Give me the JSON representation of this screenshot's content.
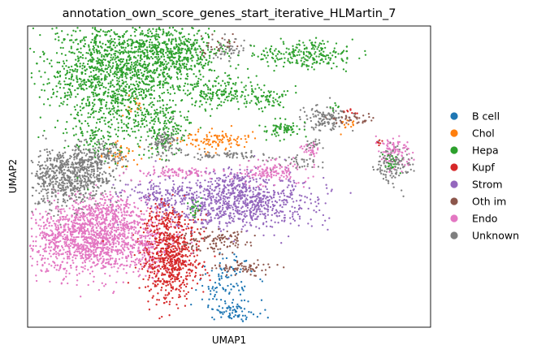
{
  "chart_data": {
    "type": "scatter",
    "title": "annotation_own_score_genes_start_iterative_HLMartin_7",
    "xlabel": "UMAP1",
    "ylabel": "UMAP2",
    "xticks": [],
    "yticks": [],
    "grid": false,
    "legend_position": "right",
    "series": [
      {
        "name": "B cell",
        "color": "#1f77b4",
        "clusters": [
          {
            "cx": 4.9,
            "cy": 1.55,
            "sx": 0.35,
            "sy": 0.5,
            "n": 90
          },
          {
            "cx": 5.1,
            "cy": 0.55,
            "sx": 0.3,
            "sy": 0.2,
            "n": 70
          }
        ]
      },
      {
        "name": "Chol",
        "color": "#ff7f0e",
        "clusters": [
          {
            "cx": 4.6,
            "cy": 6.45,
            "sx": 0.45,
            "sy": 0.18,
            "n": 110
          },
          {
            "cx": 2.3,
            "cy": 5.9,
            "sx": 0.3,
            "sy": 0.25,
            "n": 35
          },
          {
            "cx": 7.9,
            "cy": 7.0,
            "sx": 0.12,
            "sy": 0.12,
            "n": 12
          },
          {
            "cx": 2.55,
            "cy": 7.6,
            "sx": 0.2,
            "sy": 0.2,
            "n": 15
          }
        ]
      },
      {
        "name": "Hepa",
        "color": "#2ca02c",
        "clusters": [
          {
            "cx": 2.2,
            "cy": 8.7,
            "sx": 0.85,
            "sy": 1.05,
            "n": 1500
          },
          {
            "cx": 3.7,
            "cy": 9.55,
            "sx": 0.55,
            "sy": 0.45,
            "n": 400
          },
          {
            "cx": 3.3,
            "cy": 7.0,
            "sx": 0.4,
            "sy": 0.45,
            "n": 150
          },
          {
            "cx": 1.7,
            "cy": 6.6,
            "sx": 0.3,
            "sy": 0.25,
            "n": 60
          },
          {
            "cx": 4.8,
            "cy": 8.1,
            "sx": 0.45,
            "sy": 0.3,
            "n": 160
          },
          {
            "cx": 5.9,
            "cy": 7.9,
            "sx": 0.3,
            "sy": 0.2,
            "n": 70
          },
          {
            "cx": 6.3,
            "cy": 6.85,
            "sx": 0.22,
            "sy": 0.15,
            "n": 70
          },
          {
            "cx": 6.9,
            "cy": 9.4,
            "sx": 0.6,
            "sy": 0.22,
            "n": 230
          },
          {
            "cx": 4.15,
            "cy": 4.1,
            "sx": 0.08,
            "sy": 0.15,
            "n": 25
          },
          {
            "cx": 9.05,
            "cy": 5.7,
            "sx": 0.15,
            "sy": 0.2,
            "n": 25
          },
          {
            "cx": 7.6,
            "cy": 7.6,
            "sx": 0.1,
            "sy": 0.1,
            "n": 8
          }
        ]
      },
      {
        "name": "Kupf",
        "color": "#d62728",
        "clusters": [
          {
            "cx": 3.55,
            "cy": 2.4,
            "sx": 0.35,
            "sy": 0.75,
            "n": 700
          },
          {
            "cx": 3.4,
            "cy": 3.7,
            "sx": 0.2,
            "sy": 0.3,
            "n": 80
          },
          {
            "cx": 8.7,
            "cy": 6.4,
            "sx": 0.08,
            "sy": 0.08,
            "n": 8
          },
          {
            "cx": 7.95,
            "cy": 7.45,
            "sx": 0.1,
            "sy": 0.08,
            "n": 10
          }
        ]
      },
      {
        "name": "Strom",
        "color": "#9467bd",
        "clusters": [
          {
            "cx": 5.3,
            "cy": 4.3,
            "sx": 0.9,
            "sy": 0.45,
            "n": 800
          },
          {
            "cx": 3.4,
            "cy": 4.55,
            "sx": 0.5,
            "sy": 0.25,
            "n": 150
          },
          {
            "cx": 5.1,
            "cy": 5.05,
            "sx": 0.3,
            "sy": 0.2,
            "n": 80
          }
        ]
      },
      {
        "name": "Oth im",
        "color": "#8c564b",
        "clusters": [
          {
            "cx": 4.55,
            "cy": 2.95,
            "sx": 0.5,
            "sy": 0.18,
            "n": 120
          },
          {
            "cx": 5.4,
            "cy": 2.05,
            "sx": 0.45,
            "sy": 0.12,
            "n": 70
          },
          {
            "cx": 8.0,
            "cy": 7.2,
            "sx": 0.3,
            "sy": 0.12,
            "n": 40
          },
          {
            "cx": 4.65,
            "cy": 9.75,
            "sx": 0.25,
            "sy": 0.2,
            "n": 30
          }
        ]
      },
      {
        "name": "Endo",
        "color": "#e377c2",
        "clusters": [
          {
            "cx": 1.6,
            "cy": 3.05,
            "sx": 0.85,
            "sy": 0.6,
            "n": 1400
          },
          {
            "cx": 2.05,
            "cy": 4.0,
            "sx": 0.45,
            "sy": 0.3,
            "n": 200
          },
          {
            "cx": 6.0,
            "cy": 5.35,
            "sx": 0.4,
            "sy": 0.2,
            "n": 140
          },
          {
            "cx": 3.8,
            "cy": 5.35,
            "sx": 0.55,
            "sy": 0.1,
            "n": 100
          },
          {
            "cx": 9.1,
            "cy": 6.0,
            "sx": 0.2,
            "sy": 0.3,
            "n": 90
          },
          {
            "cx": 7.05,
            "cy": 6.15,
            "sx": 0.1,
            "sy": 0.12,
            "n": 30
          },
          {
            "cx": 3.0,
            "cy": 2.6,
            "sx": 0.12,
            "sy": 0.5,
            "n": 60
          }
        ]
      },
      {
        "name": "Unknown",
        "color": "#7f7f7f",
        "clusters": [
          {
            "cx": 1.0,
            "cy": 5.2,
            "sx": 0.55,
            "sy": 0.5,
            "n": 700
          },
          {
            "cx": 1.75,
            "cy": 5.9,
            "sx": 0.3,
            "sy": 0.3,
            "n": 150
          },
          {
            "cx": 3.4,
            "cy": 6.35,
            "sx": 0.18,
            "sy": 0.28,
            "n": 100
          },
          {
            "cx": 7.4,
            "cy": 7.2,
            "sx": 0.28,
            "sy": 0.2,
            "n": 120
          },
          {
            "cx": 9.05,
            "cy": 5.6,
            "sx": 0.25,
            "sy": 0.35,
            "n": 120
          },
          {
            "cx": 4.9,
            "cy": 5.95,
            "sx": 0.45,
            "sy": 0.08,
            "n": 70
          },
          {
            "cx": 5.0,
            "cy": 9.6,
            "sx": 0.22,
            "sy": 0.2,
            "n": 50
          },
          {
            "cx": 6.65,
            "cy": 5.7,
            "sx": 0.35,
            "sy": 0.15,
            "n": 40
          },
          {
            "cx": 7.1,
            "cy": 6.35,
            "sx": 0.1,
            "sy": 0.12,
            "n": 20
          }
        ]
      }
    ],
    "xlim": [
      0,
      10
    ],
    "ylim": [
      0,
      10.4
    ]
  }
}
